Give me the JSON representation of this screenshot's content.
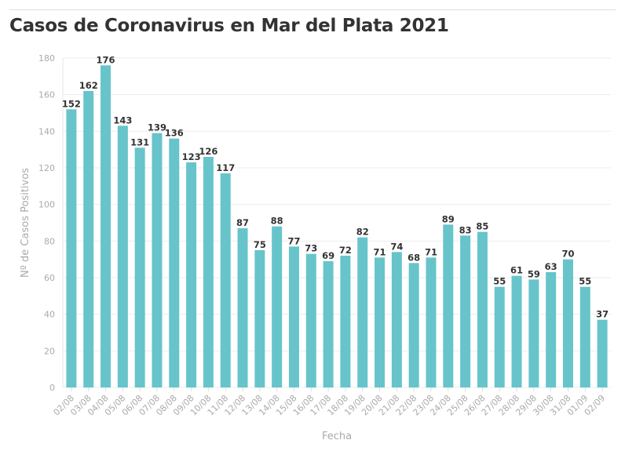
{
  "chart_data": {
    "type": "bar",
    "title": "Casos de Coronavirus en Mar del Plata 2021",
    "xlabel": "Fecha",
    "ylabel": "Nº de Casos Positivos",
    "ylim": [
      0,
      180
    ],
    "yticks": [
      0,
      20,
      40,
      60,
      80,
      100,
      120,
      140,
      160,
      180
    ],
    "grid": true,
    "bar_color": "#67c4cb",
    "categories": [
      "02/08",
      "03/08",
      "04/08",
      "05/08",
      "06/08",
      "07/08",
      "08/08",
      "09/08",
      "10/08",
      "11/08",
      "12/08",
      "13/08",
      "14/08",
      "15/08",
      "16/08",
      "17/08",
      "18/08",
      "19/08",
      "20/08",
      "21/08",
      "22/08",
      "23/08",
      "24/08",
      "25/08",
      "26/08",
      "27/08",
      "28/08",
      "29/08",
      "30/08",
      "31/08",
      "01/09",
      "02/09"
    ],
    "values": [
      152,
      162,
      176,
      143,
      131,
      139,
      136,
      123,
      126,
      117,
      87,
      75,
      88,
      77,
      73,
      69,
      72,
      82,
      71,
      74,
      68,
      71,
      89,
      83,
      85,
      55,
      61,
      59,
      63,
      70,
      55,
      37
    ]
  }
}
